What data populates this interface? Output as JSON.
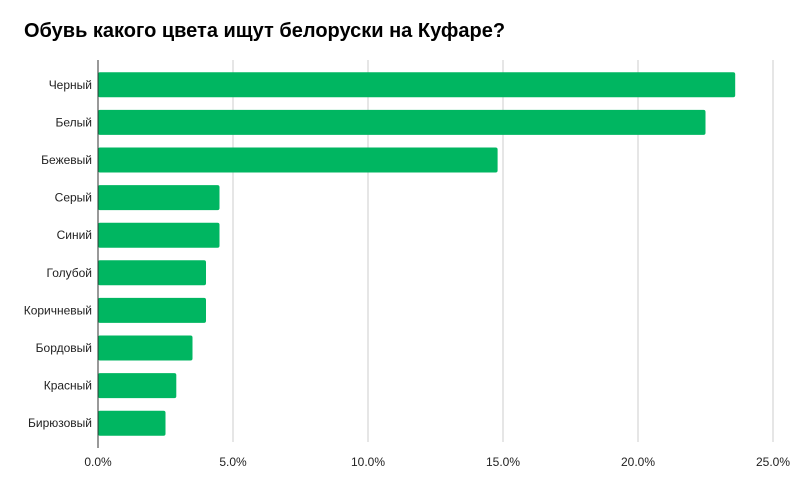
{
  "chart_data": {
    "type": "bar",
    "orientation": "horizontal",
    "title": "Обувь какого цвета ищут белоруски на Куфаре?",
    "xlabel": "",
    "ylabel": "",
    "categories": [
      "Черный",
      "Белый",
      "Бежевый",
      "Серый",
      "Синий",
      "Голубой",
      "Коричневый",
      "Бордовый",
      "Красный",
      "Бирюзовый"
    ],
    "values": [
      23.6,
      22.5,
      14.8,
      4.5,
      4.5,
      4.0,
      4.0,
      3.5,
      2.9,
      2.5
    ],
    "xlim": [
      0,
      25
    ],
    "xticks": [
      0,
      5,
      10,
      15,
      20,
      25
    ],
    "xtick_labels": [
      "0.0%",
      "5.0%",
      "10.0%",
      "15.0%",
      "20.0%",
      "25.0%"
    ],
    "grid": "vertical",
    "legend": "none",
    "bar_color": "#00b661",
    "grid_color": "#cccccc"
  }
}
